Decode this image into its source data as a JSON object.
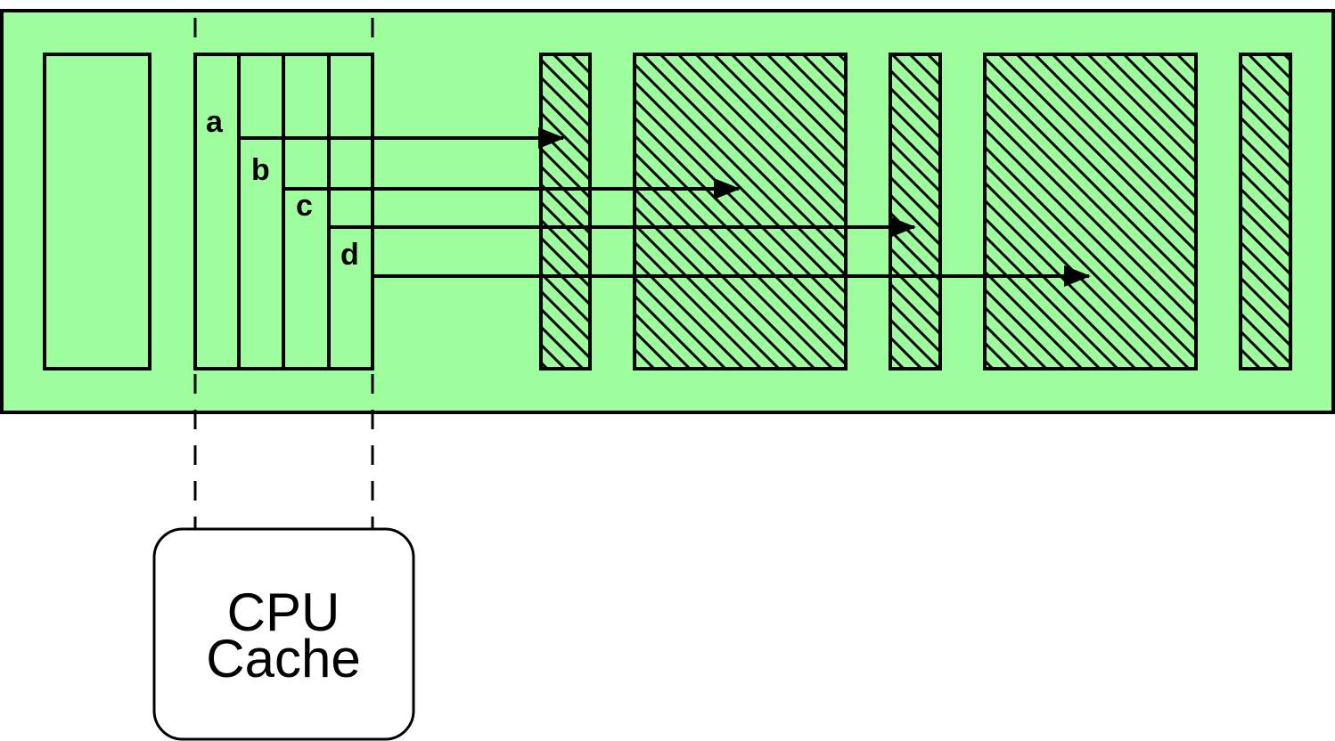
{
  "colors": {
    "memory_fill": "#9efd9c",
    "stroke": "#000000",
    "cache_fill": "#ffffff"
  },
  "memory": {
    "slot_labels": [
      "a",
      "b",
      "c",
      "d"
    ]
  },
  "cache": {
    "line1": "CPU",
    "line2": "Cache"
  }
}
